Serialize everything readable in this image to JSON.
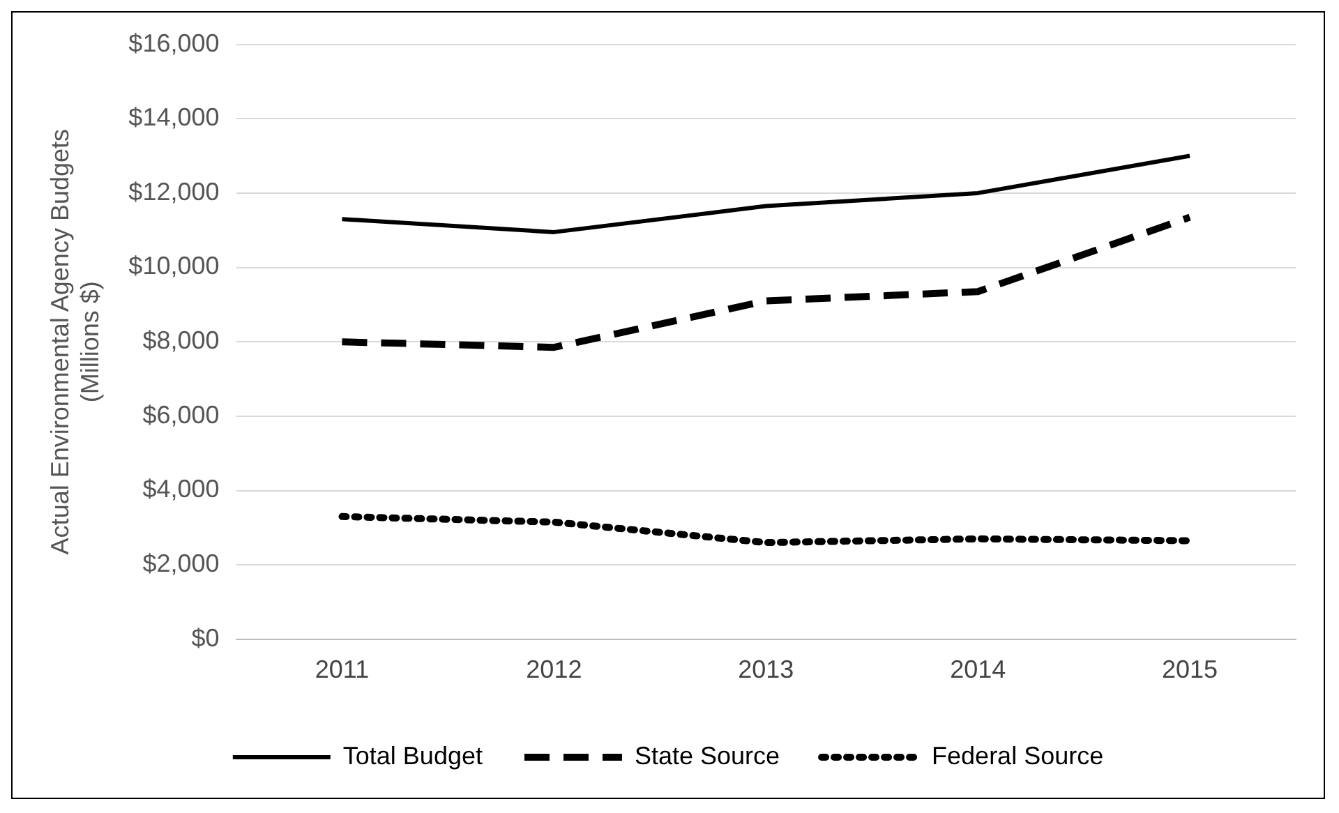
{
  "chart_data": {
    "type": "line",
    "ylabel": "Actual Environmental Agency Budgets\n(Millions $)",
    "categories": [
      "2011",
      "2012",
      "2013",
      "2014",
      "2015"
    ],
    "series": [
      {
        "name": "Total Budget",
        "color": "#000000",
        "line_style": "solid",
        "values": [
          11300,
          10950,
          11650,
          12000,
          13000
        ]
      },
      {
        "name": "State Source",
        "color": "#000000",
        "line_style": "dashed",
        "values": [
          8000,
          7850,
          9100,
          9350,
          11350
        ]
      },
      {
        "name": "Federal Source",
        "color": "#000000",
        "line_style": "dotted",
        "values": [
          3300,
          3150,
          2600,
          2700,
          2650
        ]
      }
    ],
    "ylim": [
      0,
      16000
    ],
    "yticks": [
      {
        "value": 0,
        "label": "$0"
      },
      {
        "value": 2000,
        "label": "$2,000"
      },
      {
        "value": 4000,
        "label": "$4,000"
      },
      {
        "value": 6000,
        "label": "$6,000"
      },
      {
        "value": 8000,
        "label": "$8,000"
      },
      {
        "value": 10000,
        "label": "$10,000"
      },
      {
        "value": 12000,
        "label": "$12,000"
      },
      {
        "value": 14000,
        "label": "$14,000"
      },
      {
        "value": 16000,
        "label": "$16,000"
      }
    ],
    "grid": "y",
    "legend": "bottom",
    "marker": "none"
  }
}
